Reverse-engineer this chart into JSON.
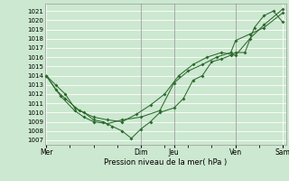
{
  "bg_color": "#cce8d0",
  "grid_color": "#b8d8be",
  "line_color": "#2d6a2d",
  "xlabel": "Pression niveau de la mer( hPa )",
  "ylim": [
    1006.5,
    1021.8
  ],
  "xlim": [
    0,
    8.5
  ],
  "day_positions": [
    0.05,
    3.38,
    4.55,
    6.72,
    8.38
  ],
  "day_labels": [
    "Mer",
    "Dim",
    "Jeu",
    "Ven",
    "Sam"
  ],
  "vlines": [
    3.38,
    4.55,
    6.72
  ],
  "series1_x": [
    0.05,
    0.38,
    0.72,
    1.05,
    1.38,
    1.72,
    2.05,
    2.38,
    2.72,
    3.05,
    3.38,
    3.72,
    4.05,
    4.55,
    4.88,
    5.22,
    5.55,
    5.88,
    6.22,
    6.55,
    6.72,
    7.05,
    7.38,
    7.72,
    8.05,
    8.38
  ],
  "series1_y": [
    1014.0,
    1013.0,
    1012.0,
    1010.5,
    1010.0,
    1009.2,
    1009.0,
    1008.5,
    1008.0,
    1007.2,
    1008.2,
    1009.0,
    1010.0,
    1010.5,
    1011.5,
    1013.5,
    1014.0,
    1015.5,
    1015.8,
    1016.2,
    1016.5,
    1016.5,
    1019.2,
    1020.5,
    1021.0,
    1019.8
  ],
  "series2_x": [
    0.05,
    0.55,
    1.05,
    1.38,
    1.72,
    2.22,
    2.72,
    3.38,
    4.05,
    4.55,
    5.05,
    5.55,
    6.05,
    6.55,
    6.72,
    7.22,
    7.72,
    8.38
  ],
  "series2_y": [
    1014.0,
    1011.8,
    1010.2,
    1009.5,
    1009.0,
    1008.8,
    1009.2,
    1009.5,
    1010.2,
    1013.2,
    1014.5,
    1015.2,
    1016.0,
    1016.5,
    1017.8,
    1018.5,
    1019.2,
    1020.8
  ],
  "series3_x": [
    0.05,
    0.38,
    0.72,
    1.22,
    1.72,
    2.22,
    2.72,
    3.22,
    3.72,
    4.22,
    4.72,
    5.22,
    5.72,
    6.22,
    6.72,
    7.22,
    7.72,
    8.38
  ],
  "series3_y": [
    1014.0,
    1012.5,
    1011.5,
    1010.2,
    1009.5,
    1009.2,
    1009.0,
    1009.8,
    1010.8,
    1012.0,
    1014.0,
    1015.2,
    1016.0,
    1016.5,
    1016.2,
    1018.0,
    1019.5,
    1021.2
  ]
}
